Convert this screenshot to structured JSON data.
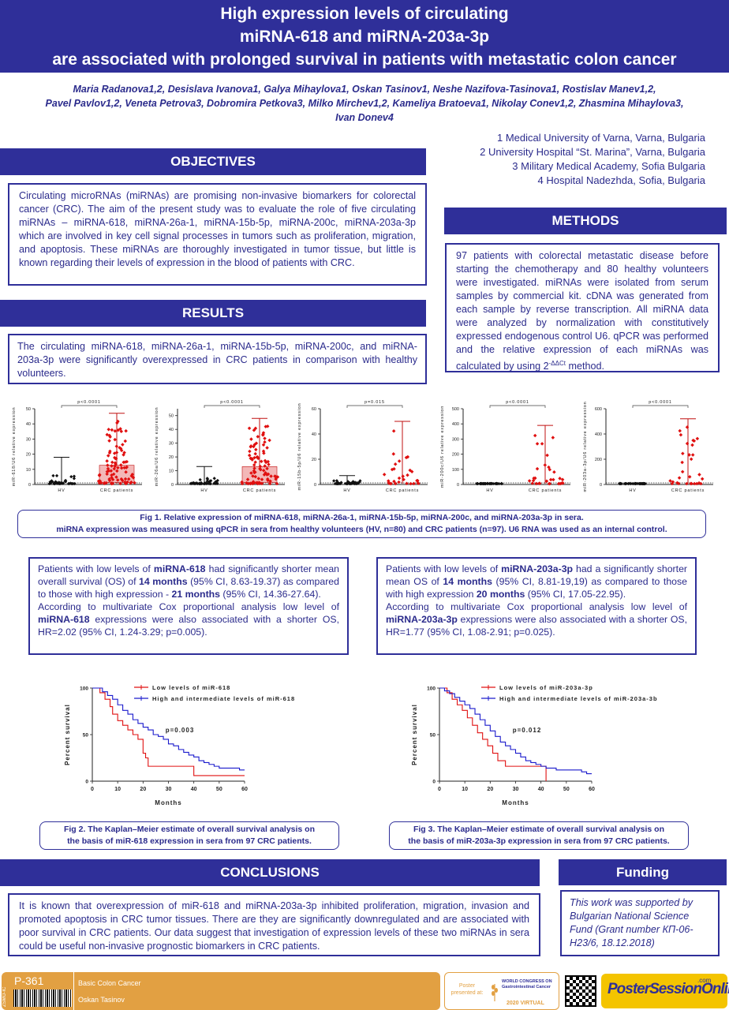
{
  "title": {
    "line1": "High expression levels of circulating",
    "line2": "miRNA-618 and miRNA-203a-3p",
    "line3": "are associated with prolonged survival in patients with metastatic colon cancer"
  },
  "authors": {
    "line1": "Maria Radanova1,2, Desislava Ivanova1, Galya Mihaylova1, Oskan Tasinov1, Neshe Nazifova-Tasinova1, Rostislav Manev1,2,",
    "line2": "Pavel Pavlov1,2, Veneta Petrova3, Dobromira Petkova3, Milko Mirchev1,2, Kameliya Bratoeva1, Nikolay Conev1,2, Zhasmina Mihaylova3,",
    "line3": "Ivan Donev4"
  },
  "affiliations": [
    "1 Medical University of Varna, Varna, Bulgaria",
    "2 University Hospital “St. Marina”, Varna, Bulgaria",
    "3 Military Medical Academy, Sofia Bulgaria",
    "4 Hospital Nadezhda, Sofia, Bulgaria"
  ],
  "sections": {
    "objectives": "OBJECTIVES",
    "methods": "METHODS",
    "results": "RESULTS",
    "conclusions": "CONCLUSIONS",
    "funding": "Funding"
  },
  "objectives_text": "Circulating microRNAs (miRNAs) are promising non-invasive biomarkers for colorectal cancer (CRC). The aim of the present study was to evaluate the role of five circulating miRNAs – miRNA-618, miRNA-26a-1, miRNA-15b-5p, miRNA-200c, miRNA-203a-3p which are involved in key cell signal processes in tumors such as proliferation, migration, and apoptosis. These miRNAs are thoroughly investigated in tumor tissue, but little is known regarding their levels of expression in the blood of patients with CRC.",
  "methods_text": "97 patients with colorectal metastatic disease before starting the chemotherapy and 80 healthy volunteers were investigated. miRNAs were isolated from serum samples by commercial kit. cDNA was generated from each sample by reverse transcription. All miRNA data were analyzed by normalization with constitutively expressed endogenous control U6. qPCR was performed and the relative expression of each miRNAs was calculated by using 2",
  "methods_sup": "-ΔΔCt",
  "methods_end": " method.",
  "results_text": "The circulating miRNA-618, miRNA-26a-1, miRNA-15b-5p, miRNA-200c, and miRNA-203a-3p were significantly overexpressed in CRC patients in comparison with healthy volunteers.",
  "fig1_caption": {
    "line1": "Fig 1. Relative expression of miRNA-618, miRNA-26a-1, miRNA-15b-5p, miRNA-200c, and miRNA-203a-3p in sera.",
    "line2": "miRNA expression was measured using qPCR in sera from healthy volunteers (HV, n=80) and CRC patients (n=97). U6 RNA was used as an internal control."
  },
  "chart_data": [
    {
      "type": "scatter",
      "ylabel": "miR-618/U6 relative expression",
      "categories": [
        "HV",
        "CRC patients"
      ],
      "yticks": [
        0,
        10,
        20,
        30,
        40,
        50
      ],
      "ylim": [
        0,
        50
      ],
      "pvalue": "p<0.0001",
      "hv_max": 18,
      "crc_max": 47
    },
    {
      "type": "scatter",
      "ylabel": "miR-26a/U6 relative expression",
      "categories": [
        "HV",
        "CRC patients"
      ],
      "yticks": [
        0,
        10,
        20,
        30,
        40,
        50
      ],
      "ylim": [
        0,
        55
      ],
      "pvalue": "p<0.0001",
      "hv_max": 13,
      "crc_max": 48
    },
    {
      "type": "scatter",
      "ylabel": "miR-15b-5p/U6 relative expression",
      "categories": [
        "HV",
        "CRC patients"
      ],
      "yticks": [
        0,
        20,
        40,
        60
      ],
      "ylim": [
        0,
        60
      ],
      "pvalue": "p=0.015",
      "hv_max": 7,
      "crc_max": 50
    },
    {
      "type": "scatter",
      "ylabel": "miR-200c/U6 relative expression",
      "categories": [
        "HV",
        "CRC patients"
      ],
      "yticks": [
        0,
        100,
        200,
        300,
        400,
        500
      ],
      "ylim": [
        0,
        500
      ],
      "pvalue": "p<0.0001",
      "hv_max": 5,
      "crc_max": 390
    },
    {
      "type": "scatter",
      "ylabel": "miR-203a-3p/U6 relative expression",
      "categories": [
        "HV",
        "CRC patients"
      ],
      "yticks": [
        0,
        200,
        400,
        600
      ],
      "ylim": [
        0,
        600
      ],
      "pvalue": "p<0.0001",
      "hv_max": 5,
      "crc_max": 520
    },
    {
      "type": "line",
      "xlabel": "Months",
      "ylabel": "Percent survival",
      "xticks": [
        0,
        10,
        20,
        30,
        40,
        50,
        60
      ],
      "yticks": [
        0,
        50,
        100
      ],
      "pvalue": "p=0.003",
      "series": [
        {
          "name": "Low levels of miR-618",
          "color": "#e01010",
          "x": [
            0,
            3,
            5,
            7,
            8,
            10,
            12,
            14,
            16,
            18,
            20,
            21,
            22,
            40,
            60
          ],
          "y": [
            100,
            95,
            88,
            80,
            72,
            65,
            60,
            55,
            50,
            45,
            30,
            25,
            16,
            6,
            6
          ]
        },
        {
          "name": "High and intermediate levels of miR-618",
          "color": "#1a1acc",
          "x": [
            0,
            4,
            6,
            8,
            10,
            12,
            14,
            16,
            18,
            20,
            22,
            24,
            26,
            28,
            30,
            32,
            34,
            36,
            38,
            40,
            42,
            44,
            46,
            48,
            50,
            56,
            58,
            60
          ],
          "y": [
            100,
            96,
            92,
            88,
            82,
            76,
            72,
            66,
            62,
            58,
            55,
            50,
            48,
            45,
            40,
            38,
            34,
            31,
            28,
            26,
            22,
            20,
            18,
            16,
            14,
            14,
            12,
            12
          ]
        }
      ]
    },
    {
      "type": "line",
      "xlabel": "Months",
      "ylabel": "Percent survival",
      "xticks": [
        0,
        10,
        20,
        30,
        40,
        50,
        60
      ],
      "yticks": [
        0,
        50,
        100
      ],
      "pvalue": "p=0.012",
      "series": [
        {
          "name": "Low levels of miR-203a-3p",
          "color": "#e01010",
          "x": [
            0,
            3,
            5,
            7,
            9,
            11,
            13,
            15,
            17,
            19,
            21,
            23,
            26,
            40,
            42
          ],
          "y": [
            100,
            95,
            88,
            82,
            76,
            68,
            60,
            52,
            45,
            38,
            30,
            22,
            16,
            16,
            0
          ]
        },
        {
          "name": "High and intermediate levels of miR-203a-3b",
          "color": "#1a1acc",
          "x": [
            0,
            2,
            4,
            6,
            8,
            10,
            12,
            14,
            16,
            18,
            20,
            22,
            24,
            26,
            28,
            30,
            32,
            34,
            36,
            38,
            40,
            42,
            46,
            50,
            56,
            58,
            60
          ],
          "y": [
            100,
            97,
            94,
            90,
            86,
            82,
            78,
            72,
            66,
            60,
            54,
            48,
            42,
            38,
            34,
            30,
            26,
            22,
            20,
            18,
            16,
            14,
            12,
            12,
            10,
            8,
            8
          ]
        }
      ]
    }
  ],
  "left_findings": {
    "p1a": "Patients with low levels of ",
    "mir": "miRNA-618",
    "p1b": " had significantly shorter mean overall survival (OS) of ",
    "m1": "14 months",
    "p1c": " (95% CI, 8.63-19.37) as compared to those with high expression - ",
    "m2": "21 months",
    "p1d": " (95% CI, 14.36-27.64).",
    "p2a": "According to multivariate Cox proportional analysis low level of ",
    "p2b": " expressions were also associated with a shorter OS, HR=2.02 (95% CI, 1.24-3.29; p=0.005)."
  },
  "right_findings": {
    "p1a": "Patients with low levels of ",
    "mir": "miRNA-203a-3p",
    "p1b": " had a significantly shorter mean OS of ",
    "m1": "14 months",
    "p1c": " (95% CI, 8.81-19,19) as compared to those with high expression ",
    "m2": "20 months",
    "p1d": " (95% CI, 17.05-22.95).",
    "p2a": "According to multivariate Cox proportional analysis low level of ",
    "p2b": " expressions were also associated with a shorter OS, HR=1.77 (95% CI, 1.08-2.91; p=0.025)."
  },
  "fig2_caption": {
    "line1": "Fig 2.  The Kaplan–Meier estimate of overall survival analysis on",
    "line2": "the basis of miR-618 expression in sera from 97 CRC patients."
  },
  "fig3_caption": {
    "line1": "Fig 3.  The Kaplan–Meier estimate of overall survival analysis on",
    "line2": "the basis of miR-203a-3p expression in sera from 97 CRC patients."
  },
  "conclusions_text": "It is known that overexpression of miR-618 and miRNA-203a-3p inhibited proliferation, migration, invasion and promoted apoptosis in CRC tumor tissues. There are they are significantly downregulated and are associated with poor survival in CRC patients. Our data suggest that investigation of expression levels of these two miRNAs in sera could be useful non-invasive prognostic biomarkers in CRC patients.",
  "funding_text": "This work was supported by Bulgarian National Science Fund (Grant number КП-06-H23/6, 18.12.2018)",
  "footer": {
    "poster_id": "P-361",
    "side_code": "ZSMO-IC",
    "track": "Basic Colon Cancer",
    "presenter": "Oskan Tasinov",
    "presented_at": "Poster presented at:",
    "congress": "WORLD CONGRESS ON Gastrointestinal Cancer",
    "edition": "2020 VIRTUAL",
    "brand": "PosterSessionOnline",
    "brand_suffix": ".com",
    "accent": "#e2a042"
  }
}
